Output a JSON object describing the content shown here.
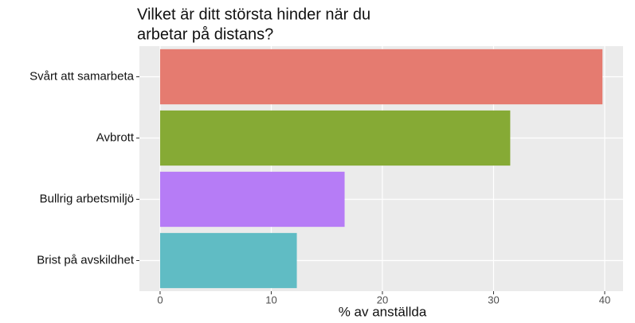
{
  "chart_data": {
    "type": "bar",
    "orientation": "horizontal",
    "title": [
      "Vilket är ditt största hinder när du",
      "arbetar på distans?"
    ],
    "x_label": "% av anställda",
    "categories": [
      "Svårt att samarbeta",
      "Avbrott",
      "Bullrig arbetsmiljö",
      "Brist på avskildhet"
    ],
    "values": [
      39.8,
      31.5,
      16.6,
      12.3
    ],
    "colors": [
      "#e57b70",
      "#86aa35",
      "#b67cf6",
      "#60bcc4"
    ],
    "xlim": [
      -1.86,
      41.65
    ],
    "xticks": [
      0,
      10,
      20,
      30,
      40
    ],
    "grid": true
  }
}
